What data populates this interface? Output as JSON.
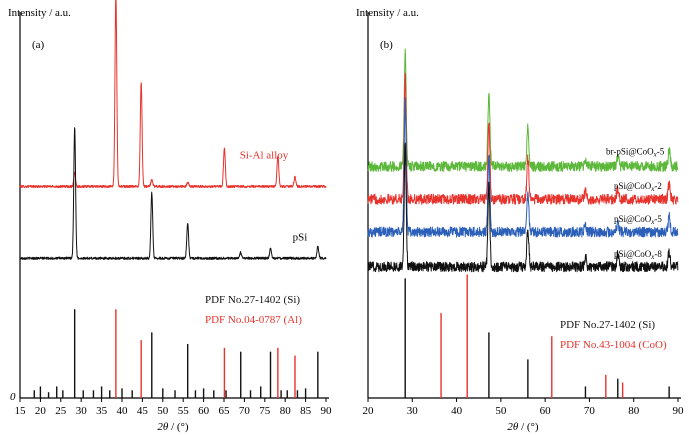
{
  "chart_data": [
    {
      "type": "line",
      "panel_label": "(a)",
      "ylabel": "Intensity / a.u.",
      "xlabel": "2θ / (°)",
      "y_origin_label": "0",
      "xlim": [
        15,
        90
      ],
      "xticks": [
        15,
        20,
        25,
        30,
        35,
        40,
        45,
        50,
        55,
        60,
        65,
        70,
        75,
        80,
        85,
        90
      ],
      "series": [
        {
          "name": "Si-Al alloy",
          "color": "#e8322c",
          "baseline": 0.548,
          "noise": 0.003,
          "peaks": [
            [
              28.4,
              0.035
            ],
            [
              38.5,
              0.5
            ],
            [
              44.7,
              0.27
            ],
            [
              47.3,
              0.018
            ],
            [
              56.1,
              0.01
            ],
            [
              65.1,
              0.1
            ],
            [
              78.2,
              0.08
            ],
            [
              82.4,
              0.025
            ]
          ]
        },
        {
          "name": "pSi",
          "color": "#111111",
          "baseline": 0.362,
          "noise": 0.003,
          "peaks": [
            [
              28.4,
              0.34
            ],
            [
              47.3,
              0.17
            ],
            [
              56.1,
              0.09
            ],
            [
              69.1,
              0.015
            ],
            [
              76.4,
              0.025
            ],
            [
              88.0,
              0.03
            ]
          ]
        }
      ],
      "reference_groups": [
        {
          "label": "PDF No.27-1402 (Si)",
          "color": "#111111",
          "lines": [
            [
              18.5,
              0.02
            ],
            [
              20.0,
              0.03
            ],
            [
              22.0,
              0.015
            ],
            [
              24.0,
              0.03
            ],
            [
              25.5,
              0.02
            ],
            [
              28.4,
              0.23
            ],
            [
              30.5,
              0.02
            ],
            [
              33.0,
              0.02
            ],
            [
              35.0,
              0.03
            ],
            [
              37.0,
              0.02
            ],
            [
              40.0,
              0.025
            ],
            [
              42.5,
              0.02
            ],
            [
              47.3,
              0.17
            ],
            [
              50.0,
              0.025
            ],
            [
              53.0,
              0.02
            ],
            [
              56.1,
              0.14
            ],
            [
              58.0,
              0.02
            ],
            [
              60.0,
              0.025
            ],
            [
              62.5,
              0.02
            ],
            [
              65.5,
              0.02
            ],
            [
              69.1,
              0.12
            ],
            [
              71.5,
              0.02
            ],
            [
              74.0,
              0.03
            ],
            [
              76.4,
              0.12
            ],
            [
              79.0,
              0.02
            ],
            [
              80.5,
              0.02
            ],
            [
              83.0,
              0.02
            ],
            [
              85.0,
              0.025
            ],
            [
              88.0,
              0.12
            ]
          ]
        },
        {
          "label": "PDF No.04-0787 (Al)",
          "color": "#e8322c",
          "lines": [
            [
              38.5,
              0.23
            ],
            [
              44.7,
              0.15
            ],
            [
              65.1,
              0.13
            ],
            [
              78.2,
              0.13
            ],
            [
              82.4,
              0.11
            ]
          ]
        }
      ]
    },
    {
      "type": "line",
      "panel_label": "(b)",
      "ylabel": "Intensity / a.u.",
      "xlabel": "2θ / (°)",
      "xlim": [
        20,
        90
      ],
      "xticks": [
        20,
        30,
        40,
        50,
        60,
        70,
        80,
        90
      ],
      "series": [
        {
          "name": "br-pSi@CoOx-5",
          "name_parts": [
            "br-pSi@CoO",
            "x",
            "-5"
          ],
          "color": "#5cb83a",
          "baseline": 0.6,
          "noise": 0.013,
          "peaks": [
            [
              28.4,
              0.3
            ],
            [
              47.3,
              0.19
            ],
            [
              56.1,
              0.1
            ],
            [
              69.1,
              0.02
            ],
            [
              76.4,
              0.025
            ],
            [
              88.0,
              0.04
            ]
          ]
        },
        {
          "name": "pSi@CoOx-2",
          "name_parts": [
            "pSi@CoO",
            "x",
            "-2"
          ],
          "color": "#e8322c",
          "baseline": 0.515,
          "noise": 0.013,
          "peaks": [
            [
              28.4,
              0.32
            ],
            [
              47.3,
              0.2
            ],
            [
              56.1,
              0.11
            ],
            [
              69.1,
              0.02
            ],
            [
              76.4,
              0.03
            ],
            [
              88.0,
              0.04
            ]
          ]
        },
        {
          "name": "pSi@CoOx-5",
          "name_parts": [
            "pSi@CoO",
            "x",
            "-5"
          ],
          "color": "#2b5fb8",
          "baseline": 0.43,
          "noise": 0.013,
          "peaks": [
            [
              28.4,
              0.34
            ],
            [
              47.3,
              0.2
            ],
            [
              56.1,
              0.1
            ],
            [
              69.1,
              0.02
            ],
            [
              76.4,
              0.025
            ],
            [
              88.0,
              0.04
            ]
          ]
        },
        {
          "name": "pSi@CoOx-8",
          "name_parts": [
            "pSi@CoO",
            "x",
            "-8"
          ],
          "color": "#111111",
          "baseline": 0.34,
          "noise": 0.013,
          "peaks": [
            [
              28.4,
              0.31
            ],
            [
              47.3,
              0.21
            ],
            [
              56.1,
              0.1
            ],
            [
              69.1,
              0.025
            ],
            [
              76.4,
              0.03
            ],
            [
              88.0,
              0.04
            ]
          ]
        }
      ],
      "reference_groups": [
        {
          "label": "PDF No.27-1402 (Si)",
          "color": "#111111",
          "lines": [
            [
              28.4,
              0.31
            ],
            [
              47.3,
              0.17
            ],
            [
              56.1,
              0.1
            ],
            [
              69.1,
              0.03
            ],
            [
              76.4,
              0.05
            ],
            [
              88.0,
              0.03
            ]
          ]
        },
        {
          "label": "PDF No.43-1004 (CoO)",
          "color": "#e8322c",
          "lines": [
            [
              36.5,
              0.22
            ],
            [
              42.4,
              0.32
            ],
            [
              61.5,
              0.16
            ],
            [
              73.7,
              0.06
            ],
            [
              77.5,
              0.04
            ]
          ]
        }
      ]
    }
  ]
}
